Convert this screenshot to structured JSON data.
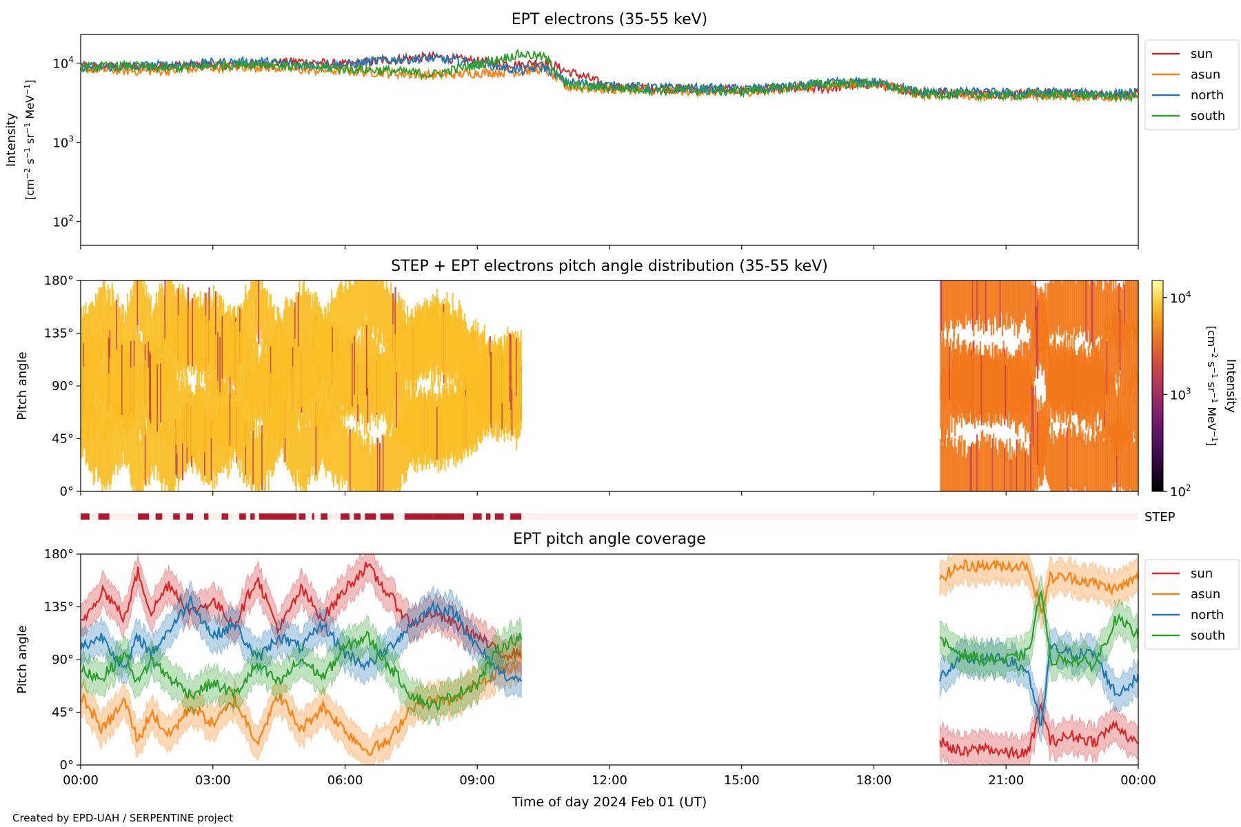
{
  "footer": "Created by EPD-UAH / SERPENTINE project",
  "chart_data": [
    {
      "type": "line",
      "title": "EPT electrons (35-55 keV)",
      "ylabel": "Intensity",
      "yunit": "[cm$^{-2}$ s$^{-1}$ sr$^{-1}$ MeV$^{-1}$]",
      "yscale": "log",
      "ylim": [
        50,
        23000
      ],
      "yticks": [
        {
          "label": "10",
          "exp": "2",
          "value": 100
        },
        {
          "label": "10",
          "exp": "3",
          "value": 1000
        },
        {
          "label": "10",
          "exp": "4",
          "value": 10000
        }
      ],
      "xlim": [
        "00:00",
        "24:00"
      ],
      "legend": "outside-right",
      "series": [
        {
          "name": "sun",
          "color": "#d62728",
          "x_hours": [
            0,
            1,
            2,
            3,
            4,
            5,
            6,
            7,
            8,
            9,
            10,
            10.5,
            11,
            12,
            13,
            14,
            15,
            16,
            17,
            18,
            19,
            20,
            21,
            22,
            23,
            24
          ],
          "values": [
            9000,
            9000,
            9200,
            9500,
            9800,
            10500,
            9500,
            11000,
            12000,
            10500,
            9500,
            10500,
            8000,
            5000,
            4800,
            4700,
            4600,
            4700,
            4800,
            5500,
            4300,
            4200,
            4100,
            4200,
            4000,
            4000
          ]
        },
        {
          "name": "asun",
          "color": "#ff7f0e",
          "x_hours": [
            0,
            1,
            2,
            3,
            4,
            5,
            6,
            7,
            8,
            9,
            10,
            10.5,
            11,
            12,
            13,
            14,
            15,
            16,
            17,
            18,
            19,
            20,
            21,
            22,
            23,
            24
          ],
          "values": [
            8500,
            8000,
            8000,
            8800,
            9000,
            8200,
            8000,
            7500,
            7000,
            7500,
            7800,
            8500,
            5000,
            4700,
            4500,
            4400,
            4300,
            4800,
            5400,
            5600,
            4000,
            4000,
            3800,
            3900,
            3800,
            3700
          ]
        },
        {
          "name": "north",
          "color": "#1f77b4",
          "x_hours": [
            0,
            1,
            2,
            3,
            4,
            5,
            6,
            7,
            8,
            9,
            10,
            10.5,
            11,
            12,
            13,
            14,
            15,
            16,
            17,
            18,
            19,
            20,
            21,
            22,
            23,
            24
          ],
          "values": [
            9000,
            9000,
            9500,
            10000,
            10500,
            9500,
            9500,
            11000,
            11500,
            10000,
            8000,
            9000,
            5800,
            5200,
            4900,
            4800,
            4700,
            5000,
            5600,
            5800,
            4300,
            4300,
            4200,
            4300,
            4100,
            4200
          ]
        },
        {
          "name": "south",
          "color": "#2ca02c",
          "x_hours": [
            0,
            1,
            2,
            3,
            4,
            5,
            6,
            7,
            8,
            9,
            10,
            10.5,
            11,
            12,
            13,
            14,
            15,
            16,
            17,
            18,
            19,
            20,
            21,
            22,
            23,
            24
          ],
          "values": [
            8800,
            9200,
            8500,
            9300,
            9800,
            9000,
            8500,
            8000,
            7200,
            9500,
            13000,
            12000,
            5200,
            4900,
            4600,
            4500,
            4400,
            4900,
            5500,
            5600,
            4100,
            4000,
            3900,
            4000,
            3900,
            3800
          ]
        }
      ]
    },
    {
      "type": "heatmap",
      "title": "STEP + EPT electrons pitch angle distribution (35-55 keV)",
      "ylabel": "Pitch angle",
      "yticks": [
        "0°",
        "45°",
        "90°",
        "135°",
        "180°"
      ],
      "xlim": [
        "00:00",
        "24:00"
      ],
      "colorbar": {
        "label": "Intensity",
        "unit": "[cm$^{-2}$ s$^{-1}$ sr$^{-1}$ MeV$^{-1}$]",
        "scale": "log",
        "range": [
          100,
          15000
        ],
        "ticks": [
          {
            "label": "10",
            "exp": "2",
            "value": 100
          },
          {
            "label": "10",
            "exp": "3",
            "value": 1000
          },
          {
            "label": "10",
            "exp": "4",
            "value": 10000
          }
        ],
        "colormap": "inferno"
      },
      "data_segments": [
        {
          "start_hours": 0,
          "end_hours": 10,
          "typical_intensity": 8000
        },
        {
          "start_hours": 19.5,
          "end_hours": 24,
          "typical_intensity": 4000
        }
      ]
    },
    {
      "type": "bar",
      "label": "STEP",
      "description_color": "#b2182b",
      "on_intervals_hours": [
        [
          0.0,
          0.2
        ],
        [
          0.4,
          0.65
        ],
        [
          1.3,
          1.55
        ],
        [
          1.7,
          1.85
        ],
        [
          2.1,
          2.25
        ],
        [
          2.4,
          2.55
        ],
        [
          2.8,
          2.9
        ],
        [
          3.2,
          3.3
        ],
        [
          3.3,
          3.35
        ],
        [
          3.6,
          3.75
        ],
        [
          3.85,
          3.95
        ],
        [
          4.05,
          4.3
        ],
        [
          4.3,
          4.5
        ],
        [
          4.25,
          4.9
        ],
        [
          4.95,
          5.1
        ],
        [
          5.25,
          5.3
        ],
        [
          5.45,
          5.6
        ],
        [
          5.9,
          6.1
        ],
        [
          6.2,
          6.35
        ],
        [
          6.45,
          6.7
        ],
        [
          6.8,
          7.1
        ],
        [
          7.35,
          8.0
        ],
        [
          8.0,
          8.7
        ],
        [
          8.9,
          9.1
        ],
        [
          9.2,
          9.3
        ],
        [
          9.4,
          9.6
        ],
        [
          9.75,
          10.0
        ]
      ]
    },
    {
      "type": "line",
      "title": "EPT pitch angle coverage",
      "ylabel": "Pitch angle",
      "yticks": [
        "0°",
        "45°",
        "90°",
        "135°",
        "180°"
      ],
      "ylim": [
        0,
        180
      ],
      "xlim": [
        "00:00",
        "24:00"
      ],
      "xticks": [
        "00:00",
        "03:00",
        "06:00",
        "09:00",
        "12:00",
        "15:00",
        "18:00",
        "21:00",
        "00:00"
      ],
      "xlabel": "Time of day 2024 Feb 01 (UT)",
      "legend": "outside-right",
      "series": [
        {
          "name": "sun",
          "color": "#d62728",
          "segments": [
            {
              "x_hours": [
                0,
                0.5,
                1,
                1.3,
                1.6,
                2,
                2.5,
                3,
                3.5,
                4,
                4.5,
                5,
                5.5,
                6,
                6.5,
                7,
                7.5,
                8,
                8.5,
                9,
                9.5,
                10
              ],
              "values": [
                120,
                150,
                125,
                165,
                130,
                155,
                130,
                140,
                120,
                160,
                115,
                150,
                125,
                150,
                170,
                145,
                120,
                130,
                120,
                110,
                95,
                95
              ]
            },
            {
              "x_hours": [
                19.5,
                20,
                20.5,
                21,
                21.5,
                21.8,
                22,
                22.5,
                23,
                23.5,
                24
              ],
              "values": [
                20,
                10,
                15,
                10,
                10,
                50,
                20,
                25,
                20,
                35,
                15
              ]
            }
          ]
        },
        {
          "name": "asun",
          "color": "#ff7f0e",
          "segments": [
            {
              "x_hours": [
                0,
                0.5,
                1,
                1.3,
                1.6,
                2,
                2.5,
                3,
                3.5,
                4,
                4.5,
                5,
                5.5,
                6,
                6.5,
                7,
                7.5,
                8,
                8.5,
                9,
                9.5,
                10
              ],
              "values": [
                60,
                30,
                55,
                20,
                45,
                25,
                50,
                35,
                55,
                20,
                60,
                30,
                50,
                30,
                12,
                20,
                50,
                55,
                55,
                70,
                80,
                85
              ]
            },
            {
              "x_hours": [
                19.5,
                20,
                20.5,
                21,
                21.5,
                21.8,
                22,
                22.5,
                23,
                23.5,
                24
              ],
              "values": [
                160,
                170,
                170,
                170,
                170,
                130,
                160,
                160,
                155,
                150,
                160
              ]
            }
          ]
        },
        {
          "name": "north",
          "color": "#1f77b4",
          "segments": [
            {
              "x_hours": [
                0,
                0.5,
                1,
                1.3,
                1.6,
                2,
                2.5,
                3,
                3.5,
                4,
                4.5,
                5,
                5.5,
                6,
                6.5,
                7,
                7.5,
                8,
                8.5,
                9,
                9.5,
                10
              ],
              "values": [
                100,
                110,
                80,
                110,
                95,
                115,
                140,
                110,
                120,
                90,
                110,
                100,
                120,
                95,
                85,
                100,
                120,
                135,
                130,
                100,
                80,
                70
              ]
            },
            {
              "x_hours": [
                19.5,
                20,
                20.5,
                21,
                21.5,
                21.8,
                22,
                22.5,
                23,
                23.5,
                24
              ],
              "values": [
                75,
                90,
                90,
                90,
                80,
                30,
                100,
                95,
                95,
                60,
                75
              ]
            }
          ]
        },
        {
          "name": "south",
          "color": "#2ca02c",
          "segments": [
            {
              "x_hours": [
                0,
                0.5,
                1,
                1.3,
                1.6,
                2,
                2.5,
                3,
                3.5,
                4,
                4.5,
                5,
                5.5,
                6,
                6.5,
                7,
                7.5,
                8,
                8.5,
                9,
                9.5,
                10
              ],
              "values": [
                80,
                75,
                95,
                70,
                90,
                75,
                60,
                70,
                60,
                85,
                70,
                90,
                75,
                100,
                110,
                85,
                60,
                50,
                60,
                70,
                100,
                110
              ]
            },
            {
              "x_hours": [
                19.5,
                20,
                20.5,
                21,
                21.5,
                21.8,
                22,
                22.5,
                23,
                23.5,
                24
              ],
              "values": [
                105,
                95,
                90,
                90,
                95,
                150,
                90,
                90,
                85,
                125,
                110
              ]
            }
          ]
        }
      ]
    }
  ]
}
